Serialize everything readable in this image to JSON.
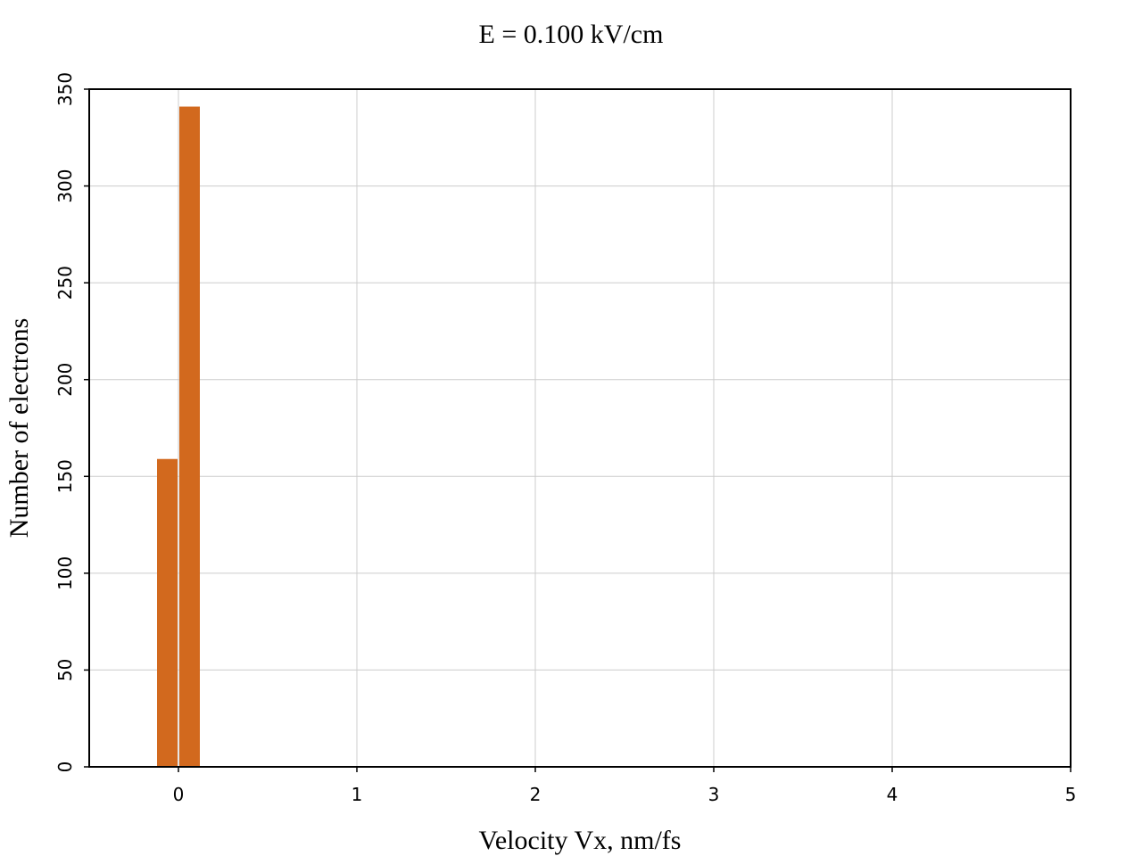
{
  "chart_data": {
    "type": "bar",
    "title": "E = 0.100 kV/cm",
    "xlabel": "Velocity Vx, nm/fs",
    "ylabel": "Number of electrons",
    "xlim": [
      -0.5,
      5
    ],
    "ylim": [
      0,
      350
    ],
    "xticks": [
      0,
      1,
      2,
      3,
      4,
      5
    ],
    "xtick_labels": [
      "0",
      "1",
      "2",
      "3",
      "4",
      "5"
    ],
    "yticks": [
      0,
      50,
      100,
      150,
      200,
      250,
      300,
      350
    ],
    "ytick_labels": [
      "0",
      "50",
      "100",
      "150",
      "200",
      "250",
      "300",
      "350"
    ],
    "grid": true,
    "bin_width": 0.125,
    "bins": [
      {
        "x": -0.0625,
        "value": 159
      },
      {
        "x": 0.0625,
        "value": 341
      }
    ],
    "colors": {
      "bar": "#d2691e",
      "grid": "#cccccc",
      "frame": "#000000"
    }
  }
}
